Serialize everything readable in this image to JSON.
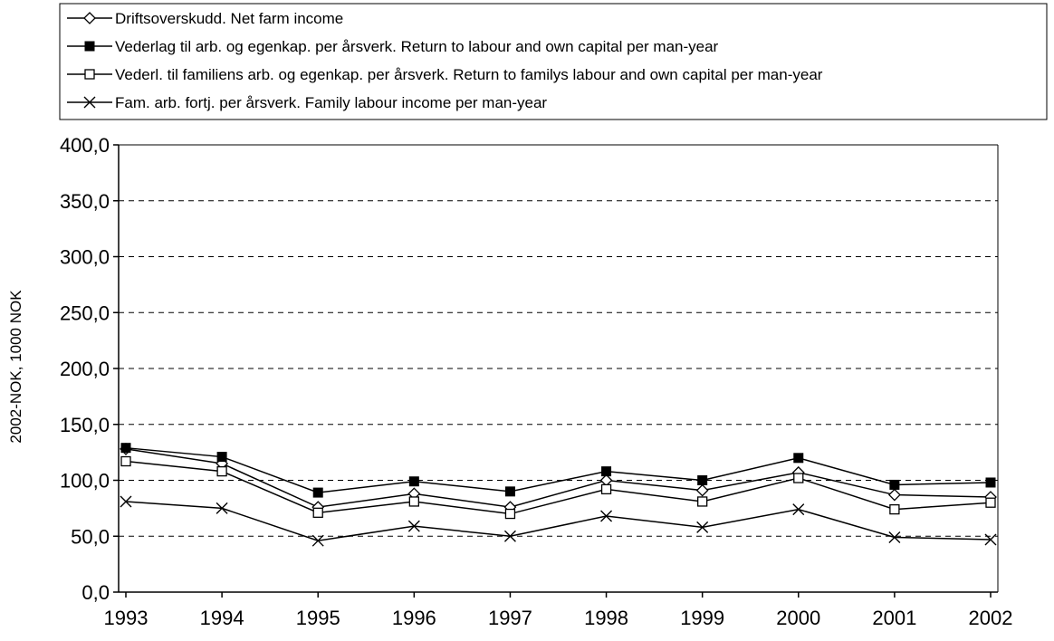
{
  "chart_data": {
    "type": "line",
    "categories": [
      "1993",
      "1994",
      "1995",
      "1996",
      "1997",
      "1998",
      "1999",
      "2000",
      "2001",
      "2002"
    ],
    "ylabel": "2002-NOK, 1000 NOK",
    "xlabel": "",
    "ylim": [
      0,
      400
    ],
    "yticks": [
      0,
      50,
      100,
      150,
      200,
      250,
      300,
      350,
      400
    ],
    "ytick_labels": [
      "0,0",
      "50,0",
      "100,0",
      "150,0",
      "200,0",
      "250,0",
      "300,0",
      "350,0",
      "400,0"
    ],
    "grid": "horizontal-dashed",
    "legend_position": "top",
    "series": [
      {
        "name": "Driftsoverskudd. Net farm income",
        "marker": "open-diamond",
        "values": [
          128,
          115,
          76,
          88,
          76,
          100,
          91,
          107,
          87,
          85
        ]
      },
      {
        "name": "Vederlag til arb. og egenkap. per årsverk. Return to labour and own capital per man-year",
        "marker": "filled-square",
        "values": [
          129,
          121,
          89,
          99,
          90,
          108,
          100,
          120,
          96,
          98
        ]
      },
      {
        "name": "Vederl. til familiens arb. og egenkap. per årsverk. Return to familys labour and own capital per man-year",
        "marker": "open-square",
        "values": [
          117,
          108,
          71,
          81,
          70,
          92,
          81,
          102,
          74,
          80
        ]
      },
      {
        "name": "Fam. arb. fortj. per årsverk.  Family labour income per man-year",
        "marker": "cross",
        "values": [
          81,
          75,
          46,
          59,
          50,
          68,
          58,
          74,
          49,
          47
        ]
      }
    ]
  }
}
